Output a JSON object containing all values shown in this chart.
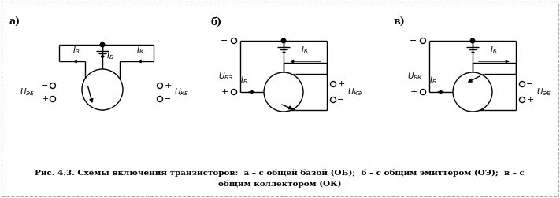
{
  "bg_color": "#ffffff",
  "border_color": "#aaaaaa",
  "cc": "black",
  "lw": 1.0,
  "label_a": "а)",
  "label_b": "б)",
  "label_c": "в)",
  "caption1": "Рис. 4.3. Схемы включения транзисторов:  а – с общей базой (ОБ);  б – с общим эмиттером (ОЭ);  в – с",
  "caption2": "общим коллектором (ОК)",
  "fs_label": 9,
  "fs_text": 7.5,
  "fs_pm": 8,
  "fs_cap": 7.5
}
